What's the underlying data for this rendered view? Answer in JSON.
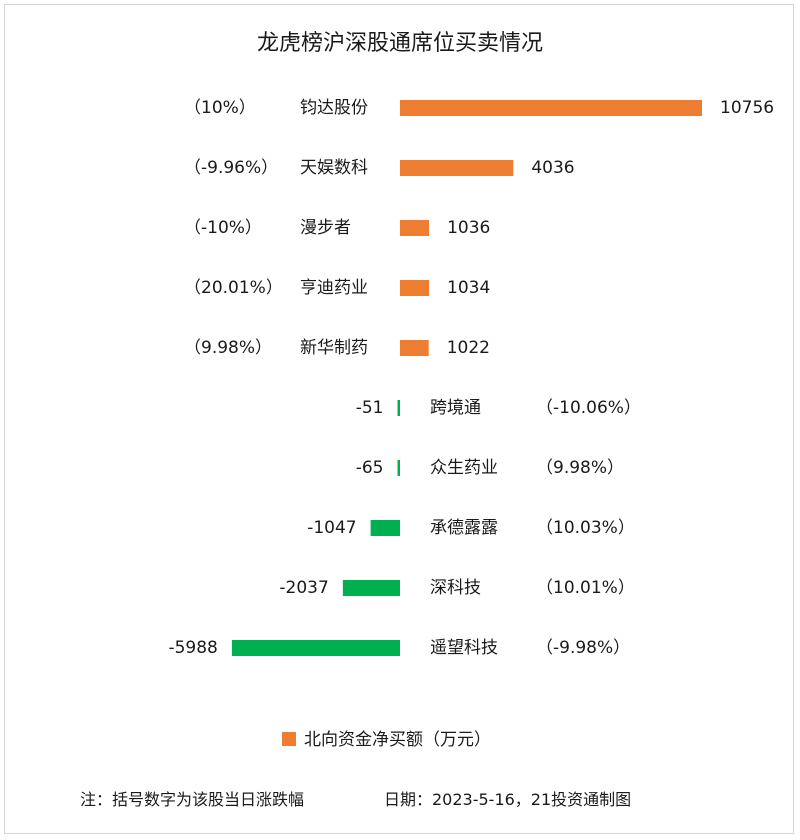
{
  "chart_data": {
    "type": "bar",
    "orientation": "horizontal",
    "title": "龙虎榜沪深股通席位买卖情况",
    "categories": [
      "钧达股份",
      "天娱数科",
      "漫步者",
      "亨迪药业",
      "新华制药",
      "跨境通",
      "众生药业",
      "承德露露",
      "深科技",
      "遥望科技"
    ],
    "changes": [
      "（10%）",
      "（-9.96%）",
      "（-10%）",
      "（20.01%）",
      "（9.98%）",
      "（-10.06%）",
      "（9.98%）",
      "（10.03%）",
      "（10.01%）",
      "（-9.98%）"
    ],
    "value_labels": [
      "10756",
      "4036",
      "1036",
      "1034",
      "1022",
      "-51",
      "-65",
      "-1047",
      "-2037",
      "-5988"
    ],
    "series": [
      {
        "name": "北向资金净买额（万元）",
        "values": [
          10756,
          4036,
          1036,
          1034,
          1022,
          -51,
          -65,
          -1047,
          -2037,
          -5988
        ]
      }
    ],
    "colors": {
      "positive": "#ED7D31",
      "negative": "#00B050",
      "legend": "#ED7D31"
    },
    "legend_position": "bottom",
    "grid": false
  },
  "footer": {
    "note": "注：括号数字为该股当日涨跌幅",
    "date": "日期：2023-5-16，21投资通制图"
  }
}
